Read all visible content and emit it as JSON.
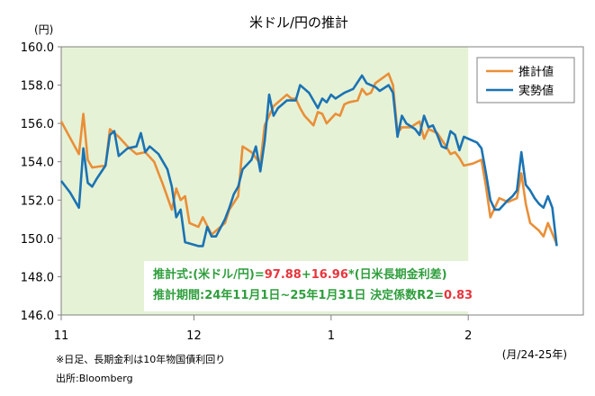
{
  "chart_data": {
    "type": "line",
    "title": "米ドル/円の推計",
    "ylabel": "(円)",
    "xlabel": "(月/24-25年)",
    "ylim": [
      146.0,
      160.0
    ],
    "yticks": [
      "146.0",
      "148.0",
      "150.0",
      "152.0",
      "154.0",
      "156.0",
      "158.0",
      "160.0"
    ],
    "xticks": [
      "11",
      "12",
      "1",
      "2"
    ],
    "xlim": [
      0,
      118
    ],
    "x_tick_positions": [
      0,
      30,
      61,
      92
    ],
    "shaded_range": [
      0,
      92
    ],
    "shade_color": "#e6f2d6",
    "legend_position": "top-right",
    "series": [
      {
        "name": "推計値",
        "color": "#e98f38",
        "points": [
          [
            0,
            156.1
          ],
          [
            4,
            154.4
          ],
          [
            5,
            156.5
          ],
          [
            6,
            154.1
          ],
          [
            7,
            153.7
          ],
          [
            10,
            153.8
          ],
          [
            11,
            155.7
          ],
          [
            13,
            155.3
          ],
          [
            15,
            154.8
          ],
          [
            17,
            154.4
          ],
          [
            19,
            154.5
          ],
          [
            21,
            154.0
          ],
          [
            23,
            152.8
          ],
          [
            25,
            151.5
          ],
          [
            26,
            152.6
          ],
          [
            27,
            152.0
          ],
          [
            28,
            152.2
          ],
          [
            29,
            150.8
          ],
          [
            31,
            150.6
          ],
          [
            32,
            151.1
          ],
          [
            34,
            150.2
          ],
          [
            35,
            150.4
          ],
          [
            37,
            150.8
          ],
          [
            38,
            151.5
          ],
          [
            40,
            152.2
          ],
          [
            41,
            154.8
          ],
          [
            43,
            154.5
          ],
          [
            45,
            153.9
          ],
          [
            46,
            155.9
          ],
          [
            48,
            156.9
          ],
          [
            49,
            157.1
          ],
          [
            51,
            157.5
          ],
          [
            52,
            157.3
          ],
          [
            53,
            157.3
          ],
          [
            54,
            156.8
          ],
          [
            55,
            156.4
          ],
          [
            57,
            155.9
          ],
          [
            58,
            156.6
          ],
          [
            59,
            156.5
          ],
          [
            60,
            156.0
          ],
          [
            62,
            156.5
          ],
          [
            63,
            156.4
          ],
          [
            64,
            157.0
          ],
          [
            65,
            157.1
          ],
          [
            67,
            157.2
          ],
          [
            68,
            157.8
          ],
          [
            69,
            157.5
          ],
          [
            70,
            157.6
          ],
          [
            71,
            158.1
          ],
          [
            74,
            158.6
          ],
          [
            75,
            158.0
          ],
          [
            76,
            155.5
          ],
          [
            77,
            155.8
          ],
          [
            79,
            155.8
          ],
          [
            81,
            156.1
          ],
          [
            82,
            155.2
          ],
          [
            83,
            155.7
          ],
          [
            85,
            155.5
          ],
          [
            87,
            154.8
          ],
          [
            88,
            154.4
          ],
          [
            89,
            154.5
          ],
          [
            90,
            154.2
          ],
          [
            91,
            153.8
          ],
          [
            93,
            153.9
          ],
          [
            95,
            154.1
          ],
          [
            96,
            152.7
          ],
          [
            97,
            151.1
          ],
          [
            99,
            152.1
          ],
          [
            101,
            151.9
          ],
          [
            103,
            152.1
          ],
          [
            104,
            153.4
          ],
          [
            105,
            151.8
          ],
          [
            106,
            150.8
          ],
          [
            108,
            150.4
          ],
          [
            109,
            150.1
          ],
          [
            110,
            150.8
          ],
          [
            112,
            149.7
          ]
        ]
      },
      {
        "name": "実勢値",
        "color": "#1b73b3",
        "points": [
          [
            0,
            153.0
          ],
          [
            2,
            152.4
          ],
          [
            4,
            151.6
          ],
          [
            5,
            154.7
          ],
          [
            6,
            152.9
          ],
          [
            7,
            152.7
          ],
          [
            8,
            153.1
          ],
          [
            10,
            153.8
          ],
          [
            11,
            155.4
          ],
          [
            12,
            155.6
          ],
          [
            13,
            154.3
          ],
          [
            15,
            154.7
          ],
          [
            17,
            154.8
          ],
          [
            18,
            155.5
          ],
          [
            19,
            154.5
          ],
          [
            20,
            154.8
          ],
          [
            22,
            154.4
          ],
          [
            24,
            153.6
          ],
          [
            25,
            152.7
          ],
          [
            26,
            151.1
          ],
          [
            27,
            151.5
          ],
          [
            28,
            149.8
          ],
          [
            31,
            149.6
          ],
          [
            32,
            149.6
          ],
          [
            33,
            150.6
          ],
          [
            34,
            150.1
          ],
          [
            35,
            150.1
          ],
          [
            37,
            151.0
          ],
          [
            38,
            151.6
          ],
          [
            39,
            152.3
          ],
          [
            40,
            152.7
          ],
          [
            41,
            153.6
          ],
          [
            43,
            154.1
          ],
          [
            44,
            154.8
          ],
          [
            45,
            153.5
          ],
          [
            46,
            155.1
          ],
          [
            47,
            157.5
          ],
          [
            48,
            156.4
          ],
          [
            49,
            156.8
          ],
          [
            50,
            157.0
          ],
          [
            51,
            157.2
          ],
          [
            53,
            157.2
          ],
          [
            54,
            158.0
          ],
          [
            55,
            157.8
          ],
          [
            56,
            157.6
          ],
          [
            58,
            156.8
          ],
          [
            59,
            157.3
          ],
          [
            60,
            157.1
          ],
          [
            61,
            157.5
          ],
          [
            62,
            157.3
          ],
          [
            64,
            157.6
          ],
          [
            66,
            157.8
          ],
          [
            68,
            158.5
          ],
          [
            69,
            158.1
          ],
          [
            71,
            157.9
          ],
          [
            72,
            157.7
          ],
          [
            74,
            158.0
          ],
          [
            75,
            157.6
          ],
          [
            76,
            155.3
          ],
          [
            77,
            156.4
          ],
          [
            78,
            156.0
          ],
          [
            80,
            155.7
          ],
          [
            81,
            155.4
          ],
          [
            82,
            156.4
          ],
          [
            83,
            155.8
          ],
          [
            84,
            155.9
          ],
          [
            85,
            155.4
          ],
          [
            86,
            154.8
          ],
          [
            87,
            154.7
          ],
          [
            88,
            155.6
          ],
          [
            89,
            155.4
          ],
          [
            90,
            154.6
          ],
          [
            91,
            155.3
          ],
          [
            94,
            155.0
          ],
          [
            95,
            154.7
          ],
          [
            96,
            153.4
          ],
          [
            97,
            152.0
          ],
          [
            98,
            151.5
          ],
          [
            99,
            151.5
          ],
          [
            101,
            152.0
          ],
          [
            102,
            152.2
          ],
          [
            103,
            152.5
          ],
          [
            104,
            154.5
          ],
          [
            105,
            152.8
          ],
          [
            106,
            152.5
          ],
          [
            107,
            152.1
          ],
          [
            108,
            151.8
          ],
          [
            109,
            151.6
          ],
          [
            110,
            152.2
          ],
          [
            111,
            151.6
          ],
          [
            112,
            149.6
          ]
        ]
      }
    ],
    "annotations": [
      {
        "color": "#2e9e3c",
        "parts": [
          {
            "text": "推計式:(米ドル/円)=",
            "color": "#2e9e3c"
          },
          {
            "text": "97.88",
            "color": "#e8353d"
          },
          {
            "text": "+",
            "color": "#2e9e3c"
          },
          {
            "text": "16.96",
            "color": "#e8353d"
          },
          {
            "text": "*(日米長期金利差)",
            "color": "#2e9e3c"
          }
        ]
      },
      {
        "color": "#2e9e3c",
        "parts": [
          {
            "text": "推計期間:24年11月1日~25年1月31日 決定係数R2=",
            "color": "#2e9e3c"
          },
          {
            "text": "0.83",
            "color": "#e8353d"
          }
        ]
      }
    ]
  },
  "notes": [
    "※日足、長期金利は10年物国債利回り",
    "出所:Bloomberg"
  ]
}
